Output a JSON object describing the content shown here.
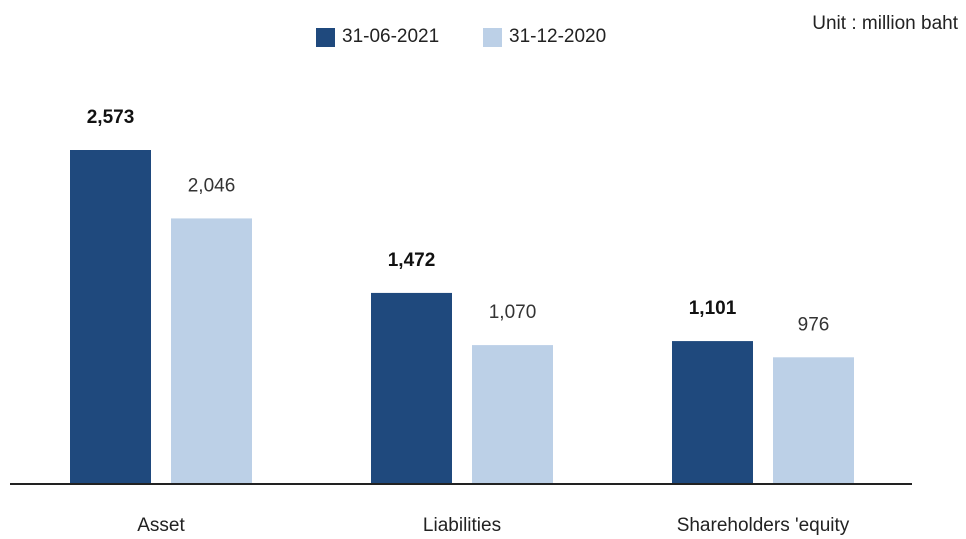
{
  "unit_label": "Unit : million baht",
  "chart_data": {
    "type": "bar",
    "categories": [
      "Asset",
      "Liabilities",
      "Shareholders 'equity"
    ],
    "series": [
      {
        "name": "31-06-2021",
        "color": "#1f497d",
        "values": [
          2573,
          1472,
          1101
        ],
        "labels": [
          "2,573",
          "1,472",
          "1,101"
        ],
        "label_bold": true
      },
      {
        "name": "31-12-2020",
        "color": "#bcd0e7",
        "values": [
          2046,
          1070,
          976
        ],
        "labels": [
          "2,046",
          "1,070",
          "976"
        ],
        "label_bold": false
      }
    ],
    "ylim": [
      0,
      2573
    ],
    "legend": "top-center",
    "grid": false
  }
}
